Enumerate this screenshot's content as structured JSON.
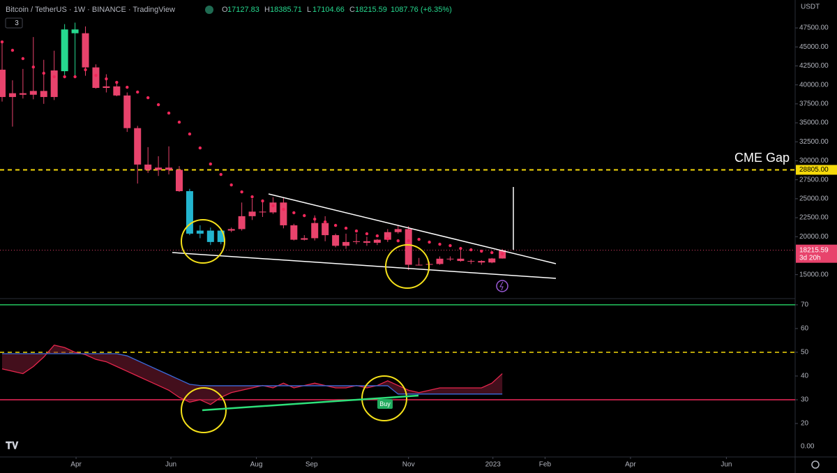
{
  "chart_data": {
    "type": "candlestick",
    "title": "Bitcoin / TetherUS · 1W · BINANCE · TradingView",
    "legend_badge": "3",
    "header_letters": [
      "O",
      "H",
      "L",
      "C"
    ],
    "change_text": "1087.76 (+6.35%)",
    "y_unit_label": "USDT",
    "countdown": "3d 20h",
    "grid": false,
    "xlim": [
      -0.2,
      76.1
    ],
    "xticks": [
      {
        "value": 7.1,
        "label": "Apr"
      },
      {
        "value": 16.2,
        "label": "Jun"
      },
      {
        "value": 24.4,
        "label": "Aug"
      },
      {
        "value": 29.7,
        "label": "Sep"
      },
      {
        "value": 39.0,
        "label": "Nov"
      },
      {
        "value": 47.1,
        "label": "2023"
      },
      {
        "value": 52.1,
        "label": "Feb"
      },
      {
        "value": 60.3,
        "label": "Apr"
      },
      {
        "value": 69.5,
        "label": "Jun"
      }
    ],
    "ylim": [
      12120,
      51180
    ],
    "yticks": [
      {
        "value": 15000,
        "label": "15000.00"
      },
      {
        "value": 20000,
        "label": "20000.00"
      },
      {
        "value": 22500,
        "label": "22500.00"
      },
      {
        "value": 25000,
        "label": "25000.00"
      },
      {
        "value": 27500,
        "label": "27500.00"
      },
      {
        "value": 30000,
        "label": "30000.00"
      },
      {
        "value": 32500,
        "label": "32500.00"
      },
      {
        "value": 35000,
        "label": "35000.00"
      },
      {
        "value": 37500,
        "label": "37500.00"
      },
      {
        "value": 40000,
        "label": "40000.00"
      },
      {
        "value": 42500,
        "label": "42500.00"
      },
      {
        "value": 45000,
        "label": "45000.00"
      },
      {
        "value": 47500,
        "label": "47500.00"
      }
    ],
    "candles": {
      "open": [
        42000,
        38400,
        38900,
        38700,
        39200,
        38400,
        41800,
        47300,
        46800,
        42300,
        39600,
        39800,
        38600,
        34300,
        29500,
        28800,
        29100,
        28800,
        26000,
        20400,
        20800,
        19300,
        20800,
        21000,
        22700,
        23300,
        23200,
        24500,
        21500,
        19600,
        19800,
        21800,
        20200,
        18800,
        19300,
        19400,
        19200,
        19600,
        20600,
        21000,
        16300,
        16300,
        16400,
        17100,
        17100,
        16800,
        16800,
        16600,
        17127.83
      ],
      "high": [
        45800,
        40600,
        42100,
        46300,
        43300,
        44500,
        48000,
        48200,
        47700,
        42700,
        41400,
        40200,
        39000,
        34600,
        31800,
        30600,
        31900,
        29300,
        26300,
        21500,
        21200,
        21000,
        21200,
        24500,
        25000,
        24800,
        25200,
        25200,
        21700,
        20200,
        22800,
        22700,
        20400,
        20400,
        20400,
        20000,
        19700,
        21000,
        21500,
        21400,
        17200,
        16700,
        17400,
        17400,
        18400,
        17000,
        16900,
        17200,
        18385.71
      ],
      "low": [
        37800,
        34500,
        38200,
        38100,
        37500,
        38000,
        41300,
        41000,
        41200,
        39500,
        39000,
        38500,
        33800,
        27000,
        28400,
        28000,
        28200,
        25900,
        20200,
        19800,
        18900,
        19000,
        20600,
        20800,
        22200,
        22600,
        23000,
        21100,
        19500,
        19500,
        19500,
        19400,
        18600,
        18400,
        19000,
        18800,
        18900,
        19300,
        20400,
        15600,
        16200,
        15500,
        16300,
        16800,
        16700,
        16400,
        16300,
        16500,
        17104.66
      ],
      "close": [
        38400,
        38900,
        38700,
        39200,
        38400,
        41900,
        47300,
        46800,
        42300,
        39600,
        39800,
        38600,
        34300,
        29500,
        28800,
        29100,
        28800,
        26000,
        20400,
        20800,
        19300,
        20800,
        21000,
        22700,
        23300,
        23200,
        24500,
        21500,
        19600,
        19800,
        21800,
        20200,
        18800,
        19300,
        19400,
        19200,
        19600,
        20600,
        21000,
        16300,
        16300,
        16400,
        17100,
        17100,
        16800,
        16800,
        16600,
        17127,
        18215.59
      ],
      "colors": [
        "#e8436c",
        "#e8436c",
        "#e8436c",
        "#e8436c",
        "#e8436c",
        "#e8436c",
        "#26d98f",
        "#26d98f",
        "#e8436c",
        "#e8436c",
        "#e8436c",
        "#e8436c",
        "#e8436c",
        "#e8436c",
        "#e8436c",
        "#e8436c",
        "#e8436c",
        "#e8436c",
        "#23b5cf",
        "#23b5cf",
        "#23b5cf",
        "#23b5cf",
        "#e8436c",
        "#e8436c",
        "#e8436c",
        "#e8436c",
        "#e8436c",
        "#e8436c",
        "#e8436c",
        "#e8436c",
        "#e8436c",
        "#e8436c",
        "#e8436c",
        "#e8436c",
        "#e8436c",
        "#e8436c",
        "#e8436c",
        "#e8436c",
        "#e8436c",
        "#e8436c",
        "#e8436c",
        "#e8436c",
        "#e8436c",
        "#e8436c",
        "#e8436c",
        "#e8436c",
        "#e8436c",
        "#e8436c",
        "#e8436c"
      ]
    },
    "sar": {
      "color": "#f0285a",
      "values": [
        45660,
        44560,
        43460,
        42350,
        41530,
        41070,
        41070,
        41070,
        41990,
        41250,
        40790,
        40330,
        39690,
        39050,
        38310,
        37390,
        36290,
        35090,
        33530,
        31690,
        29580,
        28200,
        26820,
        25900,
        25260,
        24710,
        24070,
        23600,
        23150,
        22780,
        22320,
        21950,
        21490,
        21120,
        20750,
        20390,
        20110,
        19740,
        19460,
        19460,
        19650,
        19280,
        19010,
        18820,
        18450,
        18270,
        18090,
        17900,
        17720
      ]
    },
    "hlines": [
      {
        "value": 28805,
        "label": "28805.00",
        "text": "CME Gap",
        "color": "#f5d90a"
      }
    ],
    "oscillator": {
      "ylim": [
        5.9,
        73.5
      ],
      "yticks": [
        20,
        30,
        40,
        50,
        60,
        70
      ],
      "bottom_label": "0.00",
      "signal_label": "Buy",
      "hlines": [
        {
          "value": 70,
          "color": "#22c55e",
          "dashed": false
        },
        {
          "value": 50,
          "color": "#f5d90a",
          "dashed": true
        },
        {
          "value": 30,
          "color": "#f0285a",
          "dashed": false
        }
      ],
      "series": [
        {
          "color": "#e8264d",
          "values": [
            43,
            42,
            41,
            44,
            48,
            53,
            52,
            50,
            49,
            47,
            46,
            44,
            42,
            40,
            38,
            36,
            34,
            31,
            29,
            30,
            28,
            31,
            33,
            34,
            35,
            36,
            35,
            37,
            35,
            36,
            37,
            36,
            35,
            35,
            36,
            35,
            36,
            38,
            36,
            34,
            33,
            34,
            35,
            35,
            35,
            35,
            35,
            37,
            41
          ]
        },
        {
          "color": "#3b6bdc",
          "values": [
            49.4,
            49.4,
            49.4,
            49.4,
            49.4,
            49.4,
            49.4,
            49.4,
            49.4,
            49.4,
            49.4,
            49.4,
            48.5,
            46.5,
            44.5,
            42.5,
            40.5,
            38.5,
            36.5,
            36,
            35.9,
            35.9,
            35.9,
            35.9,
            35.9,
            35.9,
            35.9,
            35.9,
            35.9,
            35.9,
            35.9,
            35.9,
            35.9,
            35.9,
            35.9,
            35.9,
            35.9,
            35.9,
            32.4,
            32.4,
            32.4,
            32.4,
            32.4,
            32.4,
            32.4,
            32.4,
            32.4,
            32.4,
            32.4
          ]
        }
      ]
    }
  }
}
